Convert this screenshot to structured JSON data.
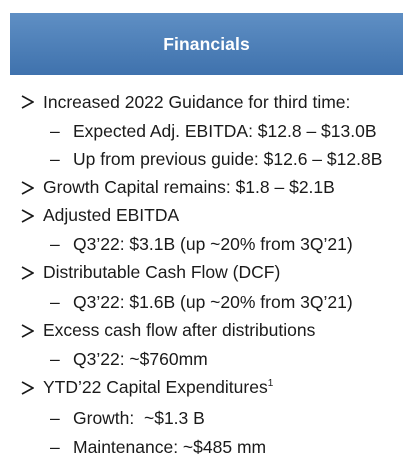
{
  "header": {
    "title": "Financials"
  },
  "items": [
    {
      "level": 1,
      "text": "Increased 2022 Guidance for third time:"
    },
    {
      "level": 2,
      "text": "Expected Adj. EBITDA: $12.8 – $13.0B"
    },
    {
      "level": 2,
      "text": "Up from previous guide: $12.6 – $12.8B"
    },
    {
      "level": 1,
      "text": "Growth Capital remains: $1.8 – $2.1B"
    },
    {
      "level": 1,
      "text": "Adjusted EBITDA"
    },
    {
      "level": 2,
      "text": "Q3’22: $3.1B (up ~20% from 3Q’21)"
    },
    {
      "level": 1,
      "text": "Distributable Cash Flow (DCF)"
    },
    {
      "level": 2,
      "text": "Q3’22: $1.6B (up ~20% from 3Q’21)"
    },
    {
      "level": 1,
      "text": "Excess cash flow after distributions"
    },
    {
      "level": 2,
      "text": "Q3’22: ~$760mm"
    },
    {
      "level": 1,
      "text": "YTD’22 Capital Expenditures",
      "sup": "1"
    },
    {
      "level": 2,
      "text": "Growth:  ~$1.3 B"
    },
    {
      "level": 2,
      "text": "Maintenance: ~$485 mm"
    }
  ],
  "symbols": {
    "dash": "–"
  },
  "colors": {
    "header_top": "#5f8fc4",
    "header_bottom": "#3f72ad",
    "header_text": "#ffffff",
    "body_text": "#1a1a1a"
  }
}
